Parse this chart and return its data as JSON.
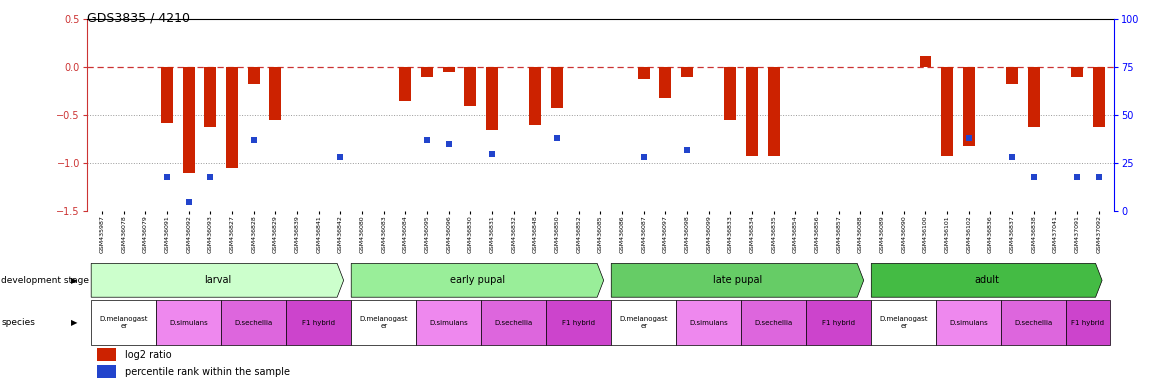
{
  "title": "GDS3835 / 4210",
  "samples": [
    "GSM435987",
    "GSM436078",
    "GSM436079",
    "GSM436091",
    "GSM436092",
    "GSM436093",
    "GSM436827",
    "GSM436828",
    "GSM436829",
    "GSM436839",
    "GSM436841",
    "GSM436842",
    "GSM436080",
    "GSM436083",
    "GSM436084",
    "GSM436095",
    "GSM436096",
    "GSM436830",
    "GSM436831",
    "GSM436832",
    "GSM436848",
    "GSM436850",
    "GSM436852",
    "GSM436085",
    "GSM436086",
    "GSM436087",
    "GSM436097",
    "GSM436098",
    "GSM436099",
    "GSM436833",
    "GSM436834",
    "GSM436835",
    "GSM436854",
    "GSM436856",
    "GSM436857",
    "GSM436088",
    "GSM436089",
    "GSM436090",
    "GSM436100",
    "GSM436101",
    "GSM436102",
    "GSM436836",
    "GSM436837",
    "GSM436838",
    "GSM437041",
    "GSM437091",
    "GSM437092"
  ],
  "log2_ratio": [
    0.0,
    0.0,
    0.0,
    -0.58,
    -1.1,
    -0.62,
    -1.05,
    -0.18,
    -0.55,
    0.0,
    0.0,
    0.0,
    0.0,
    0.0,
    -0.35,
    -0.1,
    -0.05,
    -0.4,
    -0.65,
    0.0,
    -0.6,
    -0.42,
    0.0,
    0.0,
    0.0,
    -0.12,
    -0.32,
    -0.1,
    0.0,
    -0.55,
    -0.92,
    -0.92,
    0.0,
    0.0,
    0.0,
    0.0,
    0.0,
    0.0,
    0.12,
    -0.92,
    -0.82,
    0.0,
    -0.18,
    -0.62,
    0.0,
    -0.1,
    -0.62
  ],
  "percentile": [
    null,
    null,
    null,
    18,
    5,
    18,
    null,
    37,
    null,
    null,
    null,
    28,
    null,
    null,
    null,
    37,
    35,
    null,
    30,
    null,
    null,
    38,
    null,
    null,
    null,
    28,
    null,
    32,
    null,
    null,
    null,
    null,
    null,
    null,
    null,
    null,
    null,
    null,
    null,
    null,
    38,
    null,
    28,
    18,
    null,
    18,
    18
  ],
  "dev_stages": [
    {
      "label": "larval",
      "start": 0,
      "end": 11,
      "color": "#ccffcc"
    },
    {
      "label": "early pupal",
      "start": 12,
      "end": 23,
      "color": "#99ee99"
    },
    {
      "label": "late pupal",
      "start": 24,
      "end": 35,
      "color": "#66cc66"
    },
    {
      "label": "adult",
      "start": 36,
      "end": 46,
      "color": "#44bb44"
    }
  ],
  "species_groups": [
    {
      "label": "D.melanogast\ner",
      "start": 0,
      "end": 2,
      "color": "#ffffff"
    },
    {
      "label": "D.simulans",
      "start": 3,
      "end": 5,
      "color": "#ee88ee"
    },
    {
      "label": "D.sechellia",
      "start": 6,
      "end": 8,
      "color": "#dd66dd"
    },
    {
      "label": "F1 hybrid",
      "start": 9,
      "end": 11,
      "color": "#cc44cc"
    },
    {
      "label": "D.melanogast\ner",
      "start": 12,
      "end": 14,
      "color": "#ffffff"
    },
    {
      "label": "D.simulans",
      "start": 15,
      "end": 17,
      "color": "#ee88ee"
    },
    {
      "label": "D.sechellia",
      "start": 18,
      "end": 20,
      "color": "#dd66dd"
    },
    {
      "label": "F1 hybrid",
      "start": 21,
      "end": 23,
      "color": "#cc44cc"
    },
    {
      "label": "D.melanogast\ner",
      "start": 24,
      "end": 26,
      "color": "#ffffff"
    },
    {
      "label": "D.simulans",
      "start": 27,
      "end": 29,
      "color": "#ee88ee"
    },
    {
      "label": "D.sechellia",
      "start": 30,
      "end": 32,
      "color": "#dd66dd"
    },
    {
      "label": "F1 hybrid",
      "start": 33,
      "end": 35,
      "color": "#cc44cc"
    },
    {
      "label": "D.melanogast\ner",
      "start": 36,
      "end": 38,
      "color": "#ffffff"
    },
    {
      "label": "D.simulans",
      "start": 39,
      "end": 41,
      "color": "#ee88ee"
    },
    {
      "label": "D.sechellia",
      "start": 42,
      "end": 44,
      "color": "#dd66dd"
    },
    {
      "label": "F1 hybrid",
      "start": 45,
      "end": 46,
      "color": "#cc44cc"
    }
  ],
  "ylim_left": [
    -1.5,
    0.5
  ],
  "ylim_right": [
    0,
    100
  ],
  "yticks_left": [
    -1.5,
    -1.0,
    -0.5,
    0.0,
    0.5
  ],
  "yticks_right": [
    0,
    25,
    50,
    75,
    100
  ],
  "bar_color": "#cc2200",
  "dot_color": "#2244cc",
  "ref_line_color": "#cc3333",
  "grid_line_color": "#999999",
  "fig_width": 11.58,
  "fig_height": 3.84,
  "dpi": 100
}
